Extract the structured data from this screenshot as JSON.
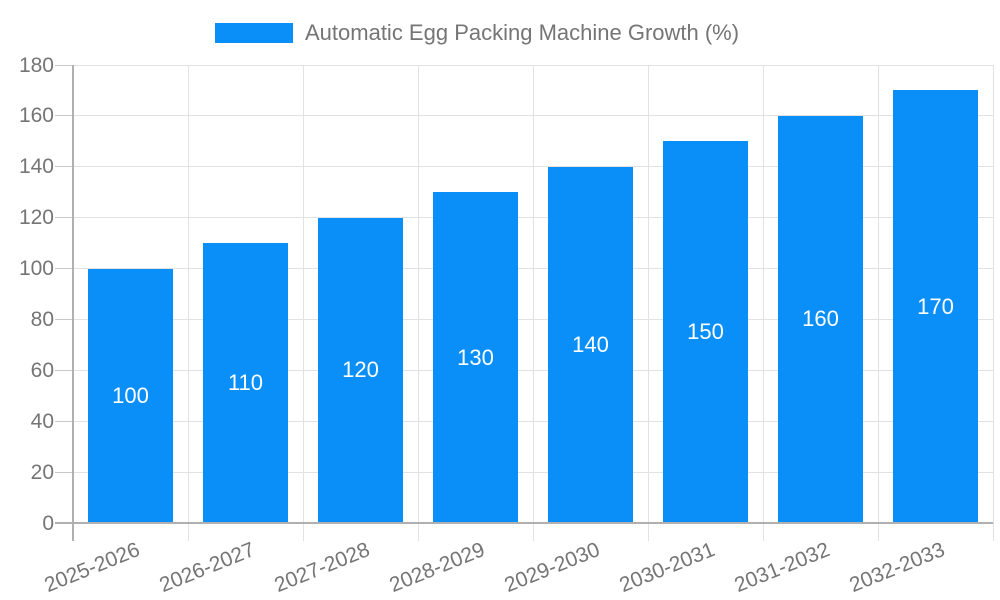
{
  "legend": {
    "label": "Automatic Egg Packing Machine Growth (%)"
  },
  "chart_data": {
    "type": "bar",
    "title": "Automatic Egg Packing Machine Growth (%)",
    "categories": [
      "2025-2026",
      "2026-2027",
      "2027-2028",
      "2028-2029",
      "2029-2030",
      "2030-2031",
      "2031-2032",
      "2032-2033"
    ],
    "series": [
      {
        "name": "Automatic Egg Packing Machine Growth (%)",
        "values": [
          100,
          110,
          120,
          130,
          140,
          150,
          160,
          170
        ]
      }
    ],
    "data_labels": [
      100,
      110,
      120,
      130,
      140,
      150,
      160,
      170
    ],
    "xlabel": "",
    "ylabel": "",
    "ylim": [
      0,
      180
    ],
    "yticks": [
      0,
      20,
      40,
      60,
      80,
      100,
      120,
      140,
      160,
      180
    ],
    "grid": true,
    "legend_position": "top",
    "data_label_position": "inside-center",
    "colors": {
      "bar": "#0a8ff9",
      "bar_label_text": "#ffffff",
      "axis_text": "#757575",
      "legend_text": "#757575",
      "gridline": "#e2e2e2",
      "axis_line": "#b0b0b0",
      "tick": "#c9c9c9",
      "background": "#ffffff"
    }
  }
}
